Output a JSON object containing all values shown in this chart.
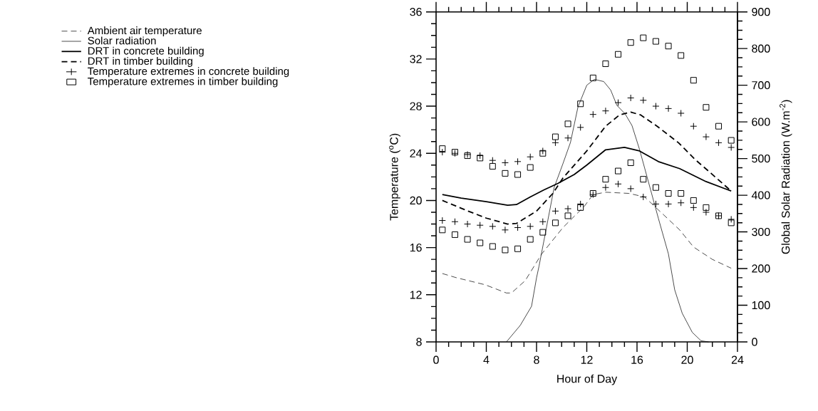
{
  "chart_data": {
    "type": "line",
    "xlabel": "Hour of Day",
    "ylabel": "Temperature ($^{o}$C)",
    "y2label": "Global Solar Radiation (W.m$^{-2}$)",
    "xlim": [
      0,
      24
    ],
    "xticks": [
      0,
      4,
      8,
      12,
      16,
      20,
      24
    ],
    "ylim": [
      8,
      36
    ],
    "yticks": [
      8,
      12,
      16,
      20,
      24,
      28,
      32,
      36
    ],
    "y2lim": [
      0,
      900
    ],
    "y2ticks": [
      0,
      100,
      200,
      300,
      400,
      500,
      600,
      700,
      800,
      900
    ],
    "legend": "left",
    "series": [
      {
        "name": "Ambient air temperature",
        "color": "#000000",
        "line_style": "dashed",
        "marker": "none",
        "x": [
          0.5,
          1.6,
          3.9,
          5.6,
          6.0,
          7.1,
          8.4,
          10.1,
          11.8,
          12.5,
          13.5,
          15.35,
          16.6,
          17.9,
          19.4,
          20.5,
          22.0,
          23.5
        ],
        "values": [
          13.8,
          13.45,
          12.85,
          12.15,
          12.15,
          13.2,
          15.45,
          17.7,
          19.5,
          20.5,
          20.7,
          20.6,
          20.3,
          19.0,
          17.5,
          16.05,
          15.0,
          14.25
        ]
      },
      {
        "name": "Solar radiation",
        "axis": "y2",
        "color": "#000000",
        "line_style": "solid",
        "marker": "none",
        "x": [
          5.6,
          6.7,
          7.6,
          8.0,
          8.2,
          9.4,
          10.1,
          10.7,
          11.3,
          12.0,
          12.6,
          13.35,
          13.9,
          14.4,
          15.05,
          15.6,
          16.2,
          16.8,
          17.7,
          18.5,
          19.0,
          19.6,
          20.4,
          21.1,
          21.7
        ],
        "values": [
          0,
          45,
          97,
          175,
          207,
          421,
          486,
          544,
          641,
          700,
          716,
          710,
          687,
          645,
          622,
          590,
          525,
          450,
          337,
          240,
          142,
          78,
          26,
          3,
          0
        ]
      },
      {
        "name": "DRT in concrete building",
        "color": "#000000",
        "line_style": "solid",
        "marker": "none",
        "x": [
          0.5,
          2,
          4,
          5.7,
          6.4,
          7.5,
          8.6,
          9.7,
          11,
          12,
          13.5,
          15,
          16.2,
          17.7,
          19.4,
          21.5,
          23.5
        ],
        "values": [
          20.5,
          20.2,
          19.9,
          19.6,
          19.65,
          20.3,
          20.9,
          21.45,
          22.2,
          23.0,
          24.3,
          24.5,
          24.2,
          23.3,
          22.7,
          21.6,
          20.8
        ]
      },
      {
        "name": "DRT in timber building",
        "color": "#000000",
        "line_style": "dashed",
        "marker": "none",
        "x": [
          0.5,
          2.55,
          4.0,
          5.7,
          6.4,
          8.0,
          9.3,
          10.1,
          12.0,
          13.5,
          14.6,
          15.5,
          16.3,
          17.6,
          19.3,
          20.6,
          21.9,
          23.5
        ],
        "values": [
          20.0,
          19.1,
          18.5,
          18.0,
          18.05,
          19.1,
          20.6,
          21.9,
          24.2,
          26.3,
          27.25,
          27.5,
          27.25,
          26.3,
          24.9,
          23.5,
          22.3,
          20.8
        ]
      },
      {
        "name": "Temperature extremes in concrete building",
        "type": "scatter",
        "color": "#000000",
        "marker": "cross",
        "x": [
          0.5,
          1.5,
          2.5,
          3.5,
          4.5,
          5.5,
          6.5,
          7.5,
          8.5,
          9.5,
          10.5,
          11.5,
          12.5,
          13.5,
          14.5,
          15.5,
          16.5,
          17.5,
          18.5,
          19.5,
          20.5,
          21.5,
          22.5,
          23.5
        ],
        "values": [
          24.1,
          24.0,
          23.9,
          23.8,
          23.4,
          23.2,
          23.3,
          23.7,
          24.2,
          24.9,
          25.3,
          26.2,
          27.3,
          27.6,
          28.3,
          28.7,
          28.5,
          28.0,
          27.8,
          27.4,
          26.3,
          25.4,
          24.9,
          24.5
        ]
      },
      {
        "name": "Temperature extremes in timber building",
        "type": "scatter",
        "color": "#000000",
        "marker": "square",
        "x": [
          0.5,
          1.5,
          2.5,
          3.5,
          4.5,
          5.5,
          6.5,
          7.5,
          8.5,
          9.5,
          10.5,
          11.5,
          12.5,
          13.5,
          14.5,
          15.5,
          16.5,
          17.5,
          18.5,
          19.5,
          20.5,
          21.5,
          22.5,
          23.5
        ],
        "values": [
          24.4,
          24.1,
          23.8,
          23.6,
          22.9,
          22.3,
          22.2,
          22.8,
          24.0,
          25.4,
          26.5,
          28.2,
          30.4,
          31.6,
          32.4,
          33.4,
          33.8,
          33.5,
          33.1,
          32.3,
          30.2,
          27.9,
          26.3,
          25.1
        ]
      },
      {
        "type": "scatter",
        "color": "#000000",
        "marker": "cross",
        "x": [
          0.5,
          1.5,
          2.5,
          3.5,
          4.5,
          5.5,
          6.5,
          7.5,
          8.5,
          9.5,
          10.5,
          11.5,
          12.5,
          13.5,
          14.5,
          15.5,
          16.5,
          17.5,
          18.5,
          19.5,
          20.5,
          21.5,
          22.5,
          23.5
        ],
        "values": [
          18.3,
          18.2,
          18.0,
          17.9,
          17.8,
          17.5,
          17.7,
          17.8,
          18.2,
          19.1,
          19.3,
          19.7,
          20.5,
          21.1,
          21.4,
          21.0,
          20.3,
          19.7,
          19.7,
          19.8,
          19.4,
          19.0,
          18.7,
          18.4
        ]
      },
      {
        "type": "scatter",
        "color": "#000000",
        "marker": "square",
        "x": [
          0.5,
          1.5,
          2.5,
          3.5,
          4.5,
          5.5,
          6.5,
          7.5,
          8.5,
          9.5,
          10.5,
          11.5,
          12.5,
          13.5,
          14.5,
          15.5,
          16.5,
          17.5,
          18.5,
          19.5,
          20.5,
          21.5,
          22.5,
          23.5
        ],
        "values": [
          17.5,
          17.1,
          16.7,
          16.4,
          16.1,
          15.8,
          15.9,
          16.7,
          17.3,
          18.1,
          18.7,
          19.4,
          20.6,
          21.8,
          22.5,
          23.2,
          21.8,
          21.1,
          20.6,
          20.6,
          20.0,
          19.4,
          18.7,
          18.1
        ]
      }
    ]
  }
}
